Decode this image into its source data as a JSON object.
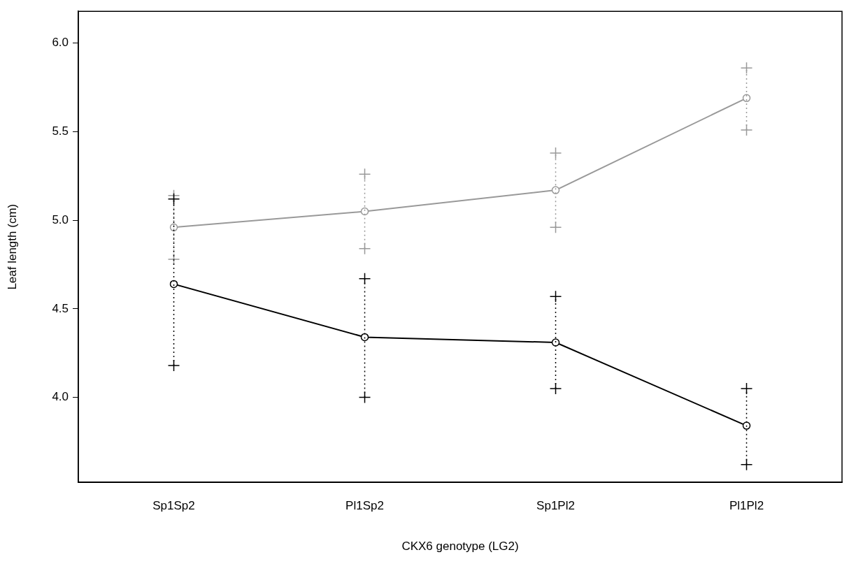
{
  "chart_data": {
    "type": "line",
    "xlabel": "CKX6 genotype (LG2)",
    "ylabel": "Leaf length (cm)",
    "categories": [
      "Sp1Sp2",
      "Pl1Sp2",
      "Sp1Pl2",
      "Pl1Pl2"
    ],
    "series": [
      {
        "color": "#999999",
        "values": [
          4.96,
          5.05,
          5.17,
          5.69
        ],
        "errors": [
          [
            4.78,
            5.14
          ],
          [
            4.84,
            5.26
          ],
          [
            4.96,
            5.38
          ],
          [
            5.51,
            5.86
          ]
        ]
      },
      {
        "color": "#000000",
        "values": [
          4.64,
          4.34,
          4.31,
          3.84
        ],
        "errors": [
          [
            4.18,
            5.12
          ],
          [
            4.0,
            4.67
          ],
          [
            4.05,
            4.57
          ],
          [
            3.62,
            4.05
          ]
        ]
      }
    ],
    "ylim": [
      3.52,
      6.18
    ],
    "yticks": [
      {
        "value": 4,
        "label": "4.0"
      },
      4.5,
      {
        "value": 5,
        "label": "5.0"
      },
      5.5,
      {
        "value": 6,
        "label": "6.0"
      }
    ],
    "grid": false,
    "legend": false,
    "marker": "circle",
    "line_style": "solid"
  }
}
